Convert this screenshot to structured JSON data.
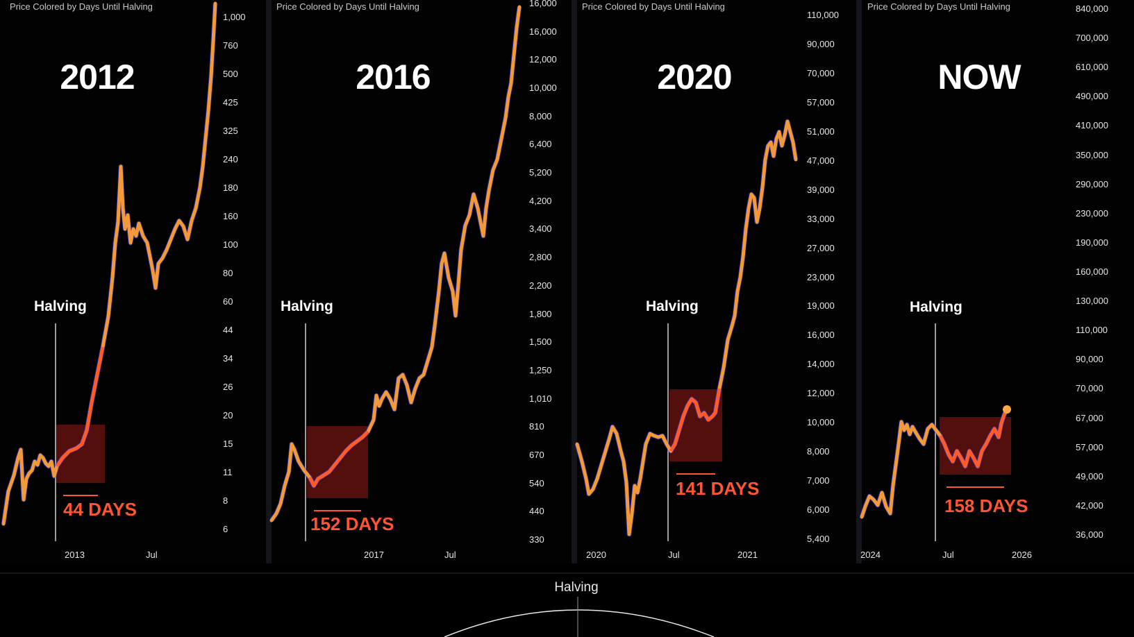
{
  "chart_data": [
    {
      "type": "line",
      "chart_title": "Price Colored by Days Until Halving",
      "panel_label": "2012",
      "halving_label": "Halving",
      "days_label": "44 DAYS",
      "y_ticks": [
        "1,000",
        "760",
        "500",
        "425",
        "325",
        "240",
        "180",
        "160",
        "100",
        "80",
        "60",
        "44",
        "34",
        "26",
        "20",
        "15",
        "11",
        "8",
        "6"
      ],
      "x_ticks": [
        "2013",
        "Jul"
      ],
      "line_color": "#f29a3a",
      "highlight_color": "#ff5a2a"
    },
    {
      "type": "line",
      "chart_title": "Price Colored by Days Until Halving",
      "panel_label": "2016",
      "halving_label": "Halving",
      "days_label": "152 DAYS",
      "y_ticks": [
        "16,000",
        "16,000",
        "12,000",
        "10,000",
        "8,000",
        "6,400",
        "5,200",
        "4,200",
        "3,400",
        "2,800",
        "2,200",
        "1,800",
        "1,500",
        "1,250",
        "1,010",
        "810",
        "670",
        "540",
        "440",
        "330"
      ],
      "x_ticks": [
        "2017",
        "Jul"
      ],
      "line_color": "#f29a3a",
      "highlight_color": "#ff5a2a"
    },
    {
      "type": "line",
      "chart_title": "Price Colored by Days Until Halving",
      "panel_label": "2020",
      "halving_label": "Halving",
      "days_label": "141 DAYS",
      "y_ticks": [
        "110,000",
        "90,000",
        "70,000",
        "57,000",
        "51,000",
        "47,000",
        "39,000",
        "33,000",
        "27,000",
        "23,000",
        "19,000",
        "16,000",
        "14,000",
        "12,000",
        "10,000",
        "8,000",
        "7,000",
        "6,000",
        "5,400"
      ],
      "x_ticks": [
        "2020",
        "Jul",
        "2021"
      ],
      "line_color": "#f29a3a",
      "highlight_color": "#ff5a2a"
    },
    {
      "type": "line",
      "chart_title": "Price Colored by Days Until Halving",
      "panel_label": "NOW",
      "halving_label": "Halving",
      "days_label": "158 DAYS",
      "y_ticks": [
        "840,000",
        "700,000",
        "610,000",
        "490,000",
        "410,000",
        "350,000",
        "290,000",
        "230,000",
        "190,000",
        "160,000",
        "130,000",
        "110,000",
        "90,000",
        "70,000",
        "67,000",
        "57,000",
        "49,000",
        "42,000",
        "36,000"
      ],
      "x_ticks": [
        "2024",
        "Jul",
        "2026"
      ],
      "line_color": "#f29a3a",
      "highlight_color": "#ff5a2a"
    }
  ],
  "bottom_label": "Halving"
}
